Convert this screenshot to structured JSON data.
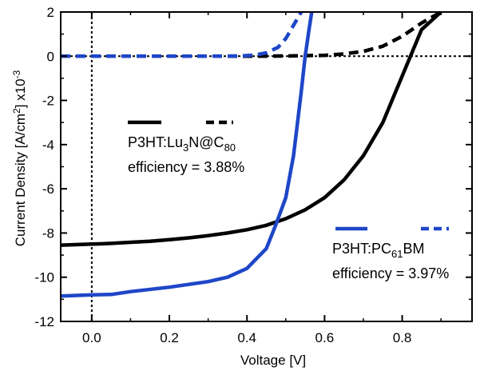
{
  "chart_data": {
    "type": "line",
    "xlabel": "Voltage [V]",
    "ylabel_main": "Current Density [A/cm",
    "ylabel_sup": "2",
    "ylabel_mid": "] x10",
    "ylabel_exp": "-3",
    "xlim": [
      -0.08,
      0.98
    ],
    "ylim": [
      -12,
      2
    ],
    "x_ticks": [
      {
        "value": 0.0,
        "label": "0.0"
      },
      {
        "value": 0.2,
        "label": "0.2"
      },
      {
        "value": 0.4,
        "label": "0.4"
      },
      {
        "value": 0.6,
        "label": "0.6"
      },
      {
        "value": 0.8,
        "label": "0.8"
      }
    ],
    "y_ticks": [
      {
        "value": 2,
        "label": "2"
      },
      {
        "value": 0,
        "label": "0"
      },
      {
        "value": -2,
        "label": "-2"
      },
      {
        "value": -4,
        "label": "-4"
      },
      {
        "value": -6,
        "label": "-6"
      },
      {
        "value": -8,
        "label": "-8"
      },
      {
        "value": -10,
        "label": "-10"
      },
      {
        "value": -12,
        "label": "-12"
      }
    ],
    "reference_lines": {
      "x": 0,
      "y": 0
    },
    "grid": false,
    "series": [
      {
        "id": "lu3n-light",
        "color": "#000000",
        "dash": "solid",
        "x": [
          -0.08,
          0.0,
          0.05,
          0.1,
          0.15,
          0.2,
          0.25,
          0.3,
          0.35,
          0.4,
          0.45,
          0.5,
          0.55,
          0.6,
          0.65,
          0.7,
          0.75,
          0.8,
          0.85,
          0.9
        ],
        "y": [
          -8.55,
          -8.5,
          -8.47,
          -8.42,
          -8.37,
          -8.3,
          -8.22,
          -8.12,
          -8.0,
          -7.85,
          -7.65,
          -7.35,
          -6.95,
          -6.4,
          -5.6,
          -4.5,
          -3.0,
          -0.9,
          1.2,
          2.0
        ]
      },
      {
        "id": "lu3n-dark",
        "color": "#000000",
        "dash": "dashed",
        "x": [
          -0.08,
          0.0,
          0.1,
          0.2,
          0.3,
          0.4,
          0.5,
          0.6,
          0.65,
          0.7,
          0.75,
          0.8,
          0.85,
          0.9
        ],
        "y": [
          0.0,
          0.0,
          0.0,
          0.0,
          0.0,
          0.0,
          0.01,
          0.04,
          0.1,
          0.22,
          0.45,
          0.9,
          1.5,
          2.0
        ]
      },
      {
        "id": "pc61bm-light",
        "color": "#1e46c8",
        "dash": "solid",
        "x": [
          -0.08,
          0.0,
          0.05,
          0.1,
          0.2,
          0.3,
          0.35,
          0.4,
          0.45,
          0.475,
          0.5,
          0.52,
          0.54,
          0.55,
          0.56,
          0.567
        ],
        "y": [
          -10.85,
          -10.8,
          -10.78,
          -10.65,
          -10.45,
          -10.2,
          -10.0,
          -9.6,
          -8.7,
          -7.6,
          -6.4,
          -4.5,
          -1.6,
          0.0,
          1.2,
          2.0
        ]
      },
      {
        "id": "pc61bm-dark",
        "color": "#1e46c8",
        "dash": "dashed",
        "x": [
          -0.08,
          0.0,
          0.1,
          0.2,
          0.3,
          0.38,
          0.42,
          0.45,
          0.48,
          0.5,
          0.52,
          0.54
        ],
        "y": [
          0.0,
          0.0,
          0.0,
          0.0,
          0.0,
          0.01,
          0.05,
          0.15,
          0.4,
          0.8,
          1.4,
          2.0
        ]
      }
    ],
    "legend": [
      {
        "line_color": "#000000",
        "name_main": "P3HT:Lu",
        "name_sub1": "3",
        "name_mid": "N@C",
        "name_sub2": "80",
        "efficiency": "efficiency = 3.88%"
      },
      {
        "line_color": "#1e46c8",
        "name_main": "P3HT:PC",
        "name_sub1": "61",
        "name_mid": "BM",
        "name_sub2": "",
        "efficiency": "efficiency = 3.97%"
      }
    ]
  }
}
